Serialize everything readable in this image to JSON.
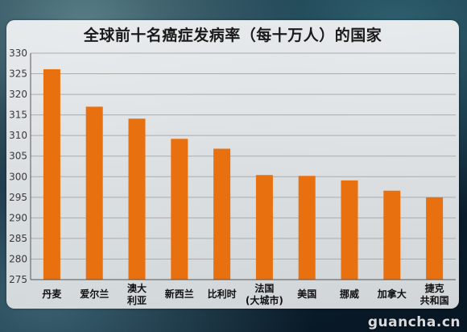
{
  "chart_data": {
    "type": "bar",
    "title": "全球前十名癌症发病率（每十万人）的国家",
    "categories": [
      "丹麦",
      "爱尔兰",
      "澳大利亚",
      "新西兰",
      "比利时",
      "法国(大城市)",
      "美国",
      "挪威",
      "加拿大",
      "捷克共和国"
    ],
    "category_lines": [
      [
        "丹麦"
      ],
      [
        "爱尔兰"
      ],
      [
        "澳大",
        "利亚"
      ],
      [
        "新西兰"
      ],
      [
        "比利时"
      ],
      [
        "法国",
        "(大城市)"
      ],
      [
        "美国"
      ],
      [
        "挪威"
      ],
      [
        "加拿大"
      ],
      [
        "捷克",
        "共和国"
      ]
    ],
    "values": [
      326.1,
      317.0,
      314.1,
      309.2,
      306.8,
      300.4,
      300.2,
      299.1,
      296.6,
      295.0
    ],
    "ylim": [
      275,
      330
    ],
    "yticks": [
      275,
      280,
      285,
      290,
      295,
      300,
      305,
      310,
      315,
      320,
      325,
      330
    ],
    "xlabel": "",
    "ylabel": "",
    "grid": true,
    "bar_color": "#e8700f"
  },
  "watermark": "guancha.cn"
}
